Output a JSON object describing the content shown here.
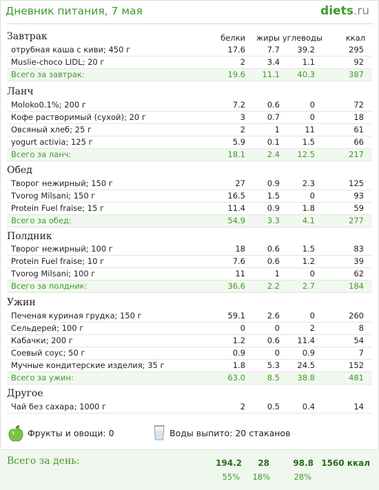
{
  "header": {
    "title": "Дневник питания, 7 мая",
    "logo_main": "diets",
    "logo_suffix": ".ru"
  },
  "columns": {
    "protein": "белки",
    "fat": "жиры",
    "carbs": "углеводы",
    "kcal": "ккал"
  },
  "meals": [
    {
      "title": "Завтрак",
      "items": [
        {
          "name": "отрубная каша с киви; 450 г",
          "p": "17.6",
          "f": "7.7",
          "c": "39.2",
          "k": "295"
        },
        {
          "name": "Muslie-choco LIDL; 20 г",
          "p": "2",
          "f": "3.4",
          "c": "1.1",
          "k": "92"
        }
      ],
      "total": {
        "label": "Всего за завтрак:",
        "p": "19.6",
        "f": "11.1",
        "c": "40.3",
        "k": "387"
      }
    },
    {
      "title": "Ланч",
      "items": [
        {
          "name": "Moloko0.1%; 200 г",
          "p": "7.2",
          "f": "0.6",
          "c": "0",
          "k": "72"
        },
        {
          "name": "Кофе растворимый (сухой); 20 г",
          "p": "3",
          "f": "0.7",
          "c": "0",
          "k": "18"
        },
        {
          "name": "Овсяный хлеб; 25 г",
          "p": "2",
          "f": "1",
          "c": "11",
          "k": "61"
        },
        {
          "name": "yogurt activia; 125 г",
          "p": "5.9",
          "f": "0.1",
          "c": "1.5",
          "k": "66"
        }
      ],
      "total": {
        "label": "Всего за ланч:",
        "p": "18.1",
        "f": "2.4",
        "c": "12.5",
        "k": "217"
      }
    },
    {
      "title": "Обед",
      "items": [
        {
          "name": "Творог нежирный; 150 г",
          "p": "27",
          "f": "0.9",
          "c": "2.3",
          "k": "125"
        },
        {
          "name": "Tvorog Milsani; 150 г",
          "p": "16.5",
          "f": "1.5",
          "c": "0",
          "k": "93"
        },
        {
          "name": "Protein Fuel fraise; 15 г",
          "p": "11.4",
          "f": "0.9",
          "c": "1.8",
          "k": "59"
        }
      ],
      "total": {
        "label": "Всего за обед:",
        "p": "54.9",
        "f": "3.3",
        "c": "4.1",
        "k": "277"
      }
    },
    {
      "title": "Полдник",
      "items": [
        {
          "name": "Творог нежирный; 100 г",
          "p": "18",
          "f": "0.6",
          "c": "1.5",
          "k": "83"
        },
        {
          "name": "Protein Fuel fraise; 10 г",
          "p": "7.6",
          "f": "0.6",
          "c": "1.2",
          "k": "39"
        },
        {
          "name": "Tvorog Milsani; 100 г",
          "p": "11",
          "f": "1",
          "c": "0",
          "k": "62"
        }
      ],
      "total": {
        "label": "Всего за полдник:",
        "p": "36.6",
        "f": "2.2",
        "c": "2.7",
        "k": "184"
      }
    },
    {
      "title": "Ужин",
      "items": [
        {
          "name": "Печеная куриная грудка; 150 г",
          "p": "59.1",
          "f": "2.6",
          "c": "0",
          "k": "260"
        },
        {
          "name": "Сельдерей; 100 г",
          "p": "0",
          "f": "0",
          "c": "2",
          "k": "8"
        },
        {
          "name": "Кабачки; 200 г",
          "p": "1.2",
          "f": "0.6",
          "c": "11.4",
          "k": "54"
        },
        {
          "name": "Соевый соус; 50 г",
          "p": "0.9",
          "f": "0",
          "c": "0.9",
          "k": "7"
        },
        {
          "name": "Мучные кондитерские изделия; 35 г",
          "p": "1.8",
          "f": "5.3",
          "c": "24.5",
          "k": "152"
        }
      ],
      "total": {
        "label": "Всего за ужин:",
        "p": "63.0",
        "f": "8.5",
        "c": "38.8",
        "k": "481"
      }
    },
    {
      "title": "Другое",
      "items": [
        {
          "name": "Чай без сахара; 1000 г",
          "p": "2",
          "f": "0.5",
          "c": "0.4",
          "k": "14"
        }
      ]
    }
  ],
  "extras": {
    "fruits_label": "Фрукты и овощи: 0",
    "water_label": "Воды выпито: 20 стаканов"
  },
  "day": {
    "label": "Всего за день:",
    "p": "194.2",
    "f": "28",
    "c": "98.8",
    "k": "1560 ккал",
    "p_pct": "55%",
    "f_pct": "18%",
    "c_pct": "28%"
  }
}
